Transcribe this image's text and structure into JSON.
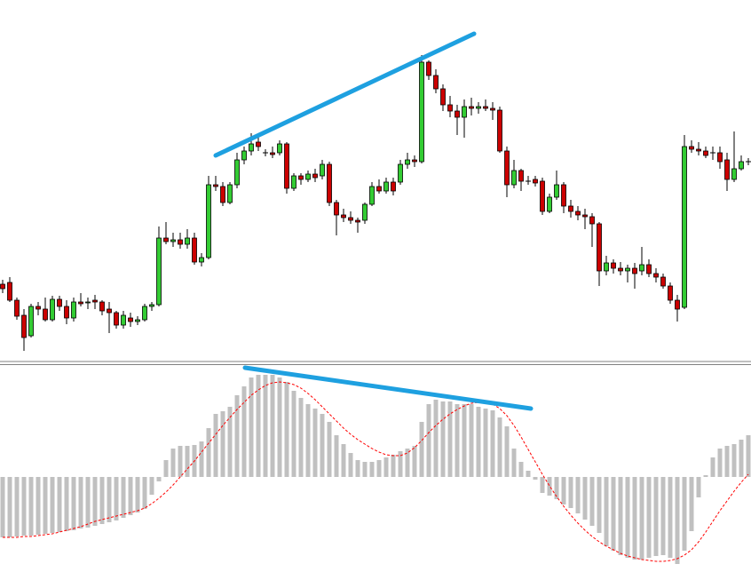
{
  "chart_data": [
    {
      "type": "candlestick",
      "ylim": [
        5,
        410
      ],
      "up_color": "#33cc33",
      "down_color": "#cc0000",
      "wick_color": "#000000",
      "open": [
        90,
        92,
        72,
        55,
        32,
        65,
        62,
        50,
        73,
        65,
        52,
        70,
        69,
        72,
        70,
        62,
        58,
        44,
        52,
        48,
        50,
        65,
        67,
        142,
        138,
        140,
        135,
        142,
        115,
        120,
        202,
        200,
        182,
        202,
        230,
        240,
        250,
        238,
        238,
        238,
        248,
        198,
        212,
        208,
        214,
        212,
        225,
        182,
        168,
        165,
        162,
        162,
        180,
        200,
        195,
        205,
        205,
        225,
        230,
        228,
        340,
        325,
        310,
        292,
        285,
        278,
        290,
        288,
        290,
        288,
        286,
        240,
        202,
        218,
        206,
        208,
        206,
        172,
        188,
        202,
        178,
        172,
        168,
        166,
        158,
        105,
        114,
        108,
        105,
        108,
        105,
        112,
        102,
        98,
        88,
        72,
        64,
        245,
        242,
        240,
        238,
        238,
        230,
        208,
        220,
        228
      ],
      "high": [
        95,
        98,
        75,
        62,
        68,
        70,
        75,
        77,
        77,
        72,
        75,
        80,
        75,
        78,
        72,
        70,
        60,
        60,
        58,
        54,
        68,
        70,
        155,
        160,
        148,
        148,
        152,
        148,
        125,
        212,
        212,
        205,
        205,
        238,
        245,
        260,
        255,
        242,
        245,
        252,
        250,
        215,
        215,
        218,
        220,
        230,
        228,
        185,
        175,
        172,
        165,
        182,
        205,
        208,
        210,
        210,
        230,
        238,
        235,
        348,
        342,
        332,
        315,
        302,
        292,
        298,
        300,
        295,
        298,
        295,
        290,
        245,
        230,
        220,
        212,
        212,
        210,
        192,
        218,
        205,
        185,
        178,
        175,
        170,
        160,
        122,
        118,
        115,
        112,
        114,
        132,
        118,
        108,
        102,
        92,
        78,
        258,
        252,
        250,
        245,
        245,
        245,
        238,
        262,
        235,
        232
      ],
      "low": [
        80,
        70,
        50,
        15,
        30,
        55,
        48,
        48,
        60,
        45,
        48,
        65,
        62,
        62,
        55,
        35,
        40,
        40,
        42,
        44,
        48,
        60,
        65,
        135,
        132,
        130,
        130,
        112,
        110,
        118,
        195,
        178,
        180,
        198,
        225,
        235,
        240,
        234,
        232,
        235,
        192,
        195,
        202,
        205,
        205,
        208,
        178,
        145,
        160,
        158,
        148,
        158,
        178,
        192,
        192,
        190,
        202,
        220,
        222,
        226,
        320,
        305,
        285,
        278,
        258,
        255,
        280,
        282,
        285,
        275,
        238,
        188,
        198,
        195,
        202,
        200,
        168,
        170,
        185,
        170,
        165,
        162,
        152,
        132,
        88,
        100,
        102,
        100,
        92,
        85,
        100,
        98,
        92,
        85,
        68,
        48,
        62,
        238,
        235,
        232,
        230,
        220,
        195,
        205,
        218,
        224
      ],
      "close": [
        85,
        72,
        54,
        30,
        65,
        62,
        50,
        73,
        65,
        52,
        70,
        68,
        70,
        70,
        60,
        58,
        44,
        55,
        48,
        50,
        65,
        67,
        142,
        138,
        140,
        135,
        142,
        115,
        120,
        202,
        200,
        182,
        202,
        230,
        240,
        248,
        245,
        238,
        236,
        248,
        198,
        212,
        208,
        214,
        210,
        225,
        182,
        168,
        165,
        162,
        160,
        180,
        200,
        195,
        205,
        195,
        225,
        230,
        228,
        340,
        325,
        310,
        292,
        285,
        278,
        290,
        288,
        290,
        288,
        286,
        240,
        202,
        218,
        206,
        206,
        204,
        172,
        188,
        202,
        178,
        172,
        168,
        166,
        158,
        105,
        114,
        108,
        105,
        108,
        102,
        112,
        102,
        98,
        88,
        72,
        62,
        245,
        242,
        240,
        235,
        238,
        228,
        208,
        220,
        228,
        228
      ]
    },
    {
      "type": "macd",
      "ylim": [
        -107,
        127
      ],
      "series": [
        {
          "type": "bar",
          "color": "#c0c0c0",
          "values": [
            -68,
            -68,
            -67,
            -66,
            -66,
            -65,
            -64,
            -63,
            -62,
            -61,
            -60,
            -58,
            -57,
            -55,
            -53,
            -51,
            -49,
            -46,
            -43,
            -40,
            -36,
            -20,
            -5,
            19,
            32,
            35,
            35,
            36,
            40,
            55,
            71,
            74,
            79,
            92,
            102,
            112,
            115,
            115,
            115,
            112,
            107,
            97,
            89,
            82,
            77,
            71,
            62,
            47,
            37,
            27,
            19,
            17,
            17,
            19,
            22,
            25,
            29,
            32,
            35,
            62,
            82,
            87,
            85,
            85,
            82,
            82,
            82,
            79,
            77,
            75,
            67,
            57,
            32,
            17,
            7,
            -3,
            -18,
            -21,
            -25,
            -31,
            -35,
            -41,
            -48,
            -55,
            -63,
            -78,
            -83,
            -88,
            -91,
            -93,
            -93,
            -91,
            -89,
            -88,
            -91,
            -98,
            -83,
            -61,
            -23,
            2,
            22,
            32,
            35,
            37,
            42,
            47
          ]
        },
        {
          "type": "line",
          "color": "#ff0000",
          "values": [
            -68,
            -68,
            -68,
            -67,
            -67,
            -66,
            -65,
            -64,
            -62,
            -60,
            -58,
            -56,
            -53,
            -50,
            -48,
            -46,
            -44,
            -42,
            -40,
            -38,
            -35,
            -30,
            -24,
            -17,
            -9,
            0,
            9,
            18,
            28,
            38,
            48,
            58,
            67,
            76,
            84,
            92,
            98,
            103,
            106,
            107,
            106,
            104,
            100,
            94,
            87,
            79,
            71,
            63,
            55,
            48,
            42,
            37,
            32,
            28,
            25,
            24,
            24,
            27,
            33,
            41,
            50,
            58,
            65,
            71,
            76,
            80,
            83,
            84,
            84,
            82,
            77,
            69,
            58,
            45,
            31,
            17,
            3,
            -10,
            -22,
            -33,
            -43,
            -52,
            -60,
            -67,
            -73,
            -78,
            -82,
            -86,
            -89,
            -91,
            -93,
            -94,
            -95,
            -95,
            -94,
            -92,
            -88,
            -82,
            -73,
            -62,
            -50,
            -38,
            -27,
            -16,
            -6,
            3
          ]
        }
      ]
    }
  ]
}
